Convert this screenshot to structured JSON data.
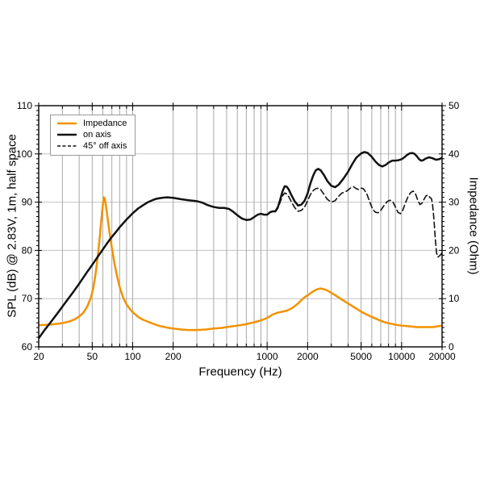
{
  "figure": {
    "xlabel": "Frequency (Hz)",
    "ylabel_left": "SPL (dB) @ 2.83V, 1m, half space",
    "ylabel_right": "Impedance (Ohm)"
  },
  "chart_data": {
    "type": "line",
    "title": "",
    "xlabel": "Frequency (Hz)",
    "ylabel_left": "SPL (dB) @ 2.83V, 1m, half space",
    "ylabel_right": "Impedance (Ohm)",
    "x_scale": "log",
    "x_range": [
      20,
      20000
    ],
    "y_left_range": [
      60,
      110
    ],
    "y_right_range": [
      0,
      50
    ],
    "x_tick_labels": [
      20,
      50,
      100,
      200,
      1000,
      2000,
      5000,
      10000,
      20000
    ],
    "x_minor_ticks": [
      20,
      30,
      40,
      50,
      60,
      70,
      80,
      90,
      100,
      200,
      300,
      400,
      500,
      600,
      700,
      800,
      900,
      1000,
      2000,
      3000,
      4000,
      5000,
      6000,
      7000,
      8000,
      9000,
      10000,
      20000
    ],
    "y_left_ticks": [
      60,
      70,
      80,
      90,
      100,
      110
    ],
    "y_right_ticks": [
      0,
      10,
      20,
      30,
      40,
      50
    ],
    "grid": true,
    "legend_position": "top-left",
    "colors": {
      "impedance": "#F39200",
      "curve_black": "#111111",
      "grid_vertical": "#a8a8a8",
      "grid_horizontal": "#c4c4c4"
    },
    "series": [
      {
        "name": "Impedance",
        "axis": "right",
        "units": "Ohm",
        "color": "#F39200",
        "style": "solid",
        "points": [
          [
            20,
            4.5
          ],
          [
            24,
            4.6
          ],
          [
            28,
            4.8
          ],
          [
            31,
            5.0
          ],
          [
            34,
            5.3
          ],
          [
            37,
            5.7
          ],
          [
            40,
            6.3
          ],
          [
            43,
            7.1
          ],
          [
            46,
            8.4
          ],
          [
            49,
            10.3
          ],
          [
            51,
            12.3
          ],
          [
            53,
            15.2
          ],
          [
            55,
            18.8
          ],
          [
            57,
            23.0
          ],
          [
            59,
            27.5
          ],
          [
            60,
            29.5
          ],
          [
            61,
            31.0
          ],
          [
            62,
            30.7
          ],
          [
            63,
            29.6
          ],
          [
            65,
            26.8
          ],
          [
            67,
            24.0
          ],
          [
            70,
            20.5
          ],
          [
            73,
            17.5
          ],
          [
            76,
            15.0
          ],
          [
            80,
            12.4
          ],
          [
            85,
            10.2
          ],
          [
            90,
            8.8
          ],
          [
            95,
            7.9
          ],
          [
            100,
            7.2
          ],
          [
            110,
            6.2
          ],
          [
            120,
            5.6
          ],
          [
            130,
            5.2
          ],
          [
            145,
            4.7
          ],
          [
            160,
            4.3
          ],
          [
            180,
            4.0
          ],
          [
            200,
            3.8
          ],
          [
            230,
            3.6
          ],
          [
            260,
            3.5
          ],
          [
            300,
            3.5
          ],
          [
            350,
            3.6
          ],
          [
            400,
            3.8
          ],
          [
            450,
            3.9
          ],
          [
            500,
            4.1
          ],
          [
            600,
            4.4
          ],
          [
            700,
            4.7
          ],
          [
            800,
            5.1
          ],
          [
            900,
            5.5
          ],
          [
            1000,
            6.0
          ],
          [
            1100,
            6.7
          ],
          [
            1200,
            7.1
          ],
          [
            1300,
            7.3
          ],
          [
            1400,
            7.5
          ],
          [
            1500,
            7.9
          ],
          [
            1600,
            8.4
          ],
          [
            1700,
            9.0
          ],
          [
            1800,
            9.7
          ],
          [
            1900,
            10.3
          ],
          [
            2000,
            10.7
          ],
          [
            2100,
            11.1
          ],
          [
            2200,
            11.5
          ],
          [
            2300,
            11.8
          ],
          [
            2400,
            12.0
          ],
          [
            2500,
            12.1
          ],
          [
            2600,
            12.0
          ],
          [
            2800,
            11.7
          ],
          [
            3000,
            11.2
          ],
          [
            3300,
            10.5
          ],
          [
            3600,
            9.8
          ],
          [
            4000,
            9.0
          ],
          [
            4500,
            8.1
          ],
          [
            5000,
            7.3
          ],
          [
            5500,
            6.7
          ],
          [
            6000,
            6.2
          ],
          [
            6500,
            5.8
          ],
          [
            7000,
            5.4
          ],
          [
            7500,
            5.1
          ],
          [
            8000,
            4.9
          ],
          [
            9000,
            4.6
          ],
          [
            10000,
            4.4
          ],
          [
            11000,
            4.3
          ],
          [
            12000,
            4.2
          ],
          [
            13000,
            4.1
          ],
          [
            14000,
            4.1
          ],
          [
            15000,
            4.1
          ],
          [
            16000,
            4.1
          ],
          [
            17000,
            4.1
          ],
          [
            18000,
            4.2
          ],
          [
            19000,
            4.3
          ],
          [
            20000,
            4.4
          ]
        ]
      },
      {
        "name": "on axis",
        "axis": "left",
        "units": "dB",
        "color": "#111111",
        "style": "solid",
        "points": [
          [
            20,
            61.8
          ],
          [
            22,
            63.4
          ],
          [
            25,
            65.4
          ],
          [
            28,
            67.2
          ],
          [
            32,
            69.4
          ],
          [
            36,
            71.3
          ],
          [
            40,
            73.1
          ],
          [
            45,
            75.2
          ],
          [
            50,
            77.0
          ],
          [
            55,
            78.7
          ],
          [
            60,
            80.2
          ],
          [
            65,
            81.6
          ],
          [
            70,
            82.8
          ],
          [
            75,
            83.8
          ],
          [
            80,
            84.8
          ],
          [
            90,
            86.4
          ],
          [
            100,
            87.7
          ],
          [
            110,
            88.7
          ],
          [
            120,
            89.4
          ],
          [
            130,
            90.0
          ],
          [
            140,
            90.4
          ],
          [
            150,
            90.7
          ],
          [
            165,
            90.9
          ],
          [
            180,
            91.0
          ],
          [
            200,
            90.9
          ],
          [
            230,
            90.6
          ],
          [
            260,
            90.4
          ],
          [
            300,
            90.2
          ],
          [
            330,
            89.9
          ],
          [
            360,
            89.4
          ],
          [
            400,
            89.0
          ],
          [
            440,
            88.8
          ],
          [
            480,
            88.8
          ],
          [
            520,
            88.6
          ],
          [
            560,
            88.0
          ],
          [
            600,
            87.3
          ],
          [
            650,
            86.6
          ],
          [
            700,
            86.3
          ],
          [
            750,
            86.4
          ],
          [
            800,
            86.9
          ],
          [
            850,
            87.4
          ],
          [
            900,
            87.6
          ],
          [
            950,
            87.4
          ],
          [
            1000,
            87.4
          ],
          [
            1050,
            87.9
          ],
          [
            1100,
            88.1
          ],
          [
            1150,
            88.1
          ],
          [
            1200,
            88.9
          ],
          [
            1250,
            90.5
          ],
          [
            1300,
            92.2
          ],
          [
            1350,
            93.3
          ],
          [
            1400,
            93.2
          ],
          [
            1450,
            92.6
          ],
          [
            1500,
            91.7
          ],
          [
            1600,
            90.2
          ],
          [
            1700,
            89.3
          ],
          [
            1800,
            89.5
          ],
          [
            1900,
            90.3
          ],
          [
            2000,
            91.8
          ],
          [
            2100,
            93.9
          ],
          [
            2200,
            95.5
          ],
          [
            2300,
            96.6
          ],
          [
            2400,
            96.9
          ],
          [
            2500,
            96.6
          ],
          [
            2650,
            95.6
          ],
          [
            2800,
            94.4
          ],
          [
            3000,
            93.4
          ],
          [
            3200,
            93.1
          ],
          [
            3400,
            93.6
          ],
          [
            3700,
            94.9
          ],
          [
            4000,
            96.3
          ],
          [
            4300,
            97.9
          ],
          [
            4600,
            99.2
          ],
          [
            5000,
            100.1
          ],
          [
            5300,
            100.4
          ],
          [
            5600,
            100.2
          ],
          [
            6000,
            99.4
          ],
          [
            6400,
            98.4
          ],
          [
            6800,
            97.7
          ],
          [
            7200,
            97.4
          ],
          [
            7600,
            97.7
          ],
          [
            8000,
            98.2
          ],
          [
            8500,
            98.6
          ],
          [
            9000,
            98.6
          ],
          [
            9500,
            98.7
          ],
          [
            10000,
            98.9
          ],
          [
            10500,
            99.3
          ],
          [
            11000,
            99.8
          ],
          [
            11500,
            100.1
          ],
          [
            12000,
            100.2
          ],
          [
            12500,
            100.0
          ],
          [
            13000,
            99.5
          ],
          [
            13500,
            98.9
          ],
          [
            14000,
            98.6
          ],
          [
            14500,
            98.7
          ],
          [
            15000,
            99.0
          ],
          [
            16000,
            99.3
          ],
          [
            17000,
            99.1
          ],
          [
            18000,
            98.8
          ],
          [
            19000,
            98.9
          ],
          [
            20000,
            99.2
          ]
        ]
      },
      {
        "name": "45° off axis",
        "axis": "left",
        "units": "dB",
        "color": "#111111",
        "style": "dashed",
        "points": [
          [
            1000,
            87.4
          ],
          [
            1050,
            87.9
          ],
          [
            1100,
            88.0
          ],
          [
            1150,
            88.0
          ],
          [
            1200,
            88.7
          ],
          [
            1250,
            90.0
          ],
          [
            1300,
            91.3
          ],
          [
            1350,
            91.9
          ],
          [
            1400,
            91.7
          ],
          [
            1450,
            91.1
          ],
          [
            1500,
            90.3
          ],
          [
            1600,
            88.9
          ],
          [
            1700,
            88.1
          ],
          [
            1800,
            88.3
          ],
          [
            1900,
            89.0
          ],
          [
            2000,
            90.3
          ],
          [
            2100,
            91.6
          ],
          [
            2200,
            92.4
          ],
          [
            2300,
            92.8
          ],
          [
            2400,
            92.9
          ],
          [
            2500,
            92.6
          ],
          [
            2650,
            91.6
          ],
          [
            2800,
            90.6
          ],
          [
            3000,
            90.0
          ],
          [
            3200,
            90.3
          ],
          [
            3400,
            91.2
          ],
          [
            3600,
            91.9
          ],
          [
            3800,
            92.1
          ],
          [
            4000,
            92.5
          ],
          [
            4200,
            93.0
          ],
          [
            4400,
            93.2
          ],
          [
            4600,
            92.8
          ],
          [
            4800,
            92.6
          ],
          [
            5000,
            92.9
          ],
          [
            5200,
            92.8
          ],
          [
            5500,
            91.8
          ],
          [
            5800,
            90.0
          ],
          [
            6100,
            88.5
          ],
          [
            6400,
            87.9
          ],
          [
            6700,
            87.8
          ],
          [
            7000,
            88.3
          ],
          [
            7400,
            89.3
          ],
          [
            7800,
            90.1
          ],
          [
            8200,
            90.4
          ],
          [
            8600,
            90.1
          ],
          [
            9000,
            89.0
          ],
          [
            9400,
            87.9
          ],
          [
            9800,
            87.6
          ],
          [
            10200,
            88.3
          ],
          [
            10700,
            89.9
          ],
          [
            11200,
            91.2
          ],
          [
            11700,
            92.0
          ],
          [
            12200,
            92.3
          ],
          [
            12700,
            91.7
          ],
          [
            13200,
            90.4
          ],
          [
            13700,
            89.5
          ],
          [
            14200,
            89.8
          ],
          [
            14700,
            90.6
          ],
          [
            15200,
            91.3
          ],
          [
            15700,
            91.5
          ],
          [
            16200,
            91.0
          ],
          [
            16700,
            90.7
          ],
          [
            17000,
            89.5
          ],
          [
            17400,
            86.5
          ],
          [
            17800,
            82.5
          ],
          [
            18200,
            79.5
          ],
          [
            18600,
            78.6
          ],
          [
            19000,
            78.8
          ],
          [
            19500,
            79.1
          ],
          [
            20000,
            79.5
          ]
        ]
      }
    ]
  }
}
